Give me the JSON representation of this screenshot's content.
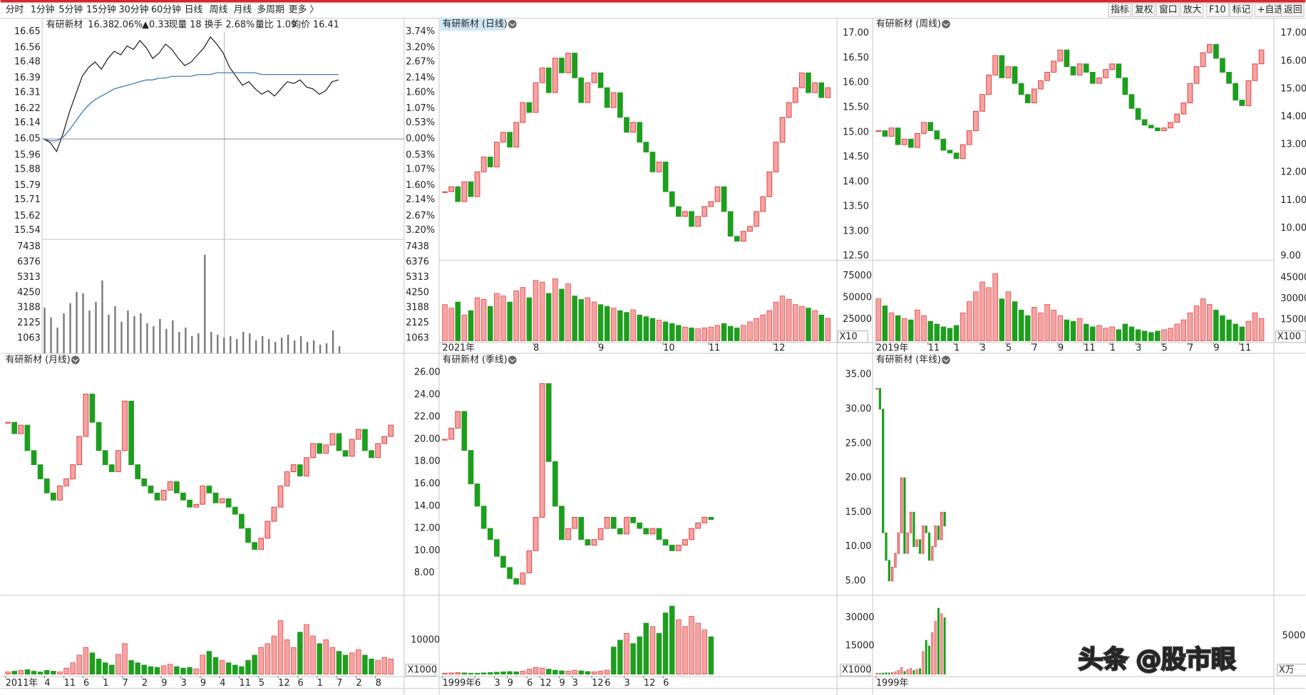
{
  "toolbar": {
    "left": [
      "分时",
      "1分钟",
      "5分钟",
      "15分钟",
      "30分钟",
      "60分钟",
      "日线",
      "周线",
      "月线",
      "多周期",
      "更多 〉"
    ],
    "active_index": 6,
    "right": [
      "指标",
      "复权",
      "窗口",
      "放大",
      "F10",
      "标记",
      "+自选",
      "返回"
    ]
  },
  "up_color": "#e23c3c",
  "down_color": "#1e9e1e",
  "intraday": {
    "type": "intraday",
    "header": {
      "name": "有研新材",
      "price": "16.38",
      "pct": "2.06%",
      "change": "▲0.33",
      "volume": "现量 18",
      "turnover": "换手 2.68%",
      "ratio": "量比 1.09",
      "avg": "均价 16.41"
    },
    "ylim": [
      15.54,
      16.65
    ],
    "yticks": [
      16.65,
      16.56,
      16.48,
      16.39,
      16.31,
      16.22,
      16.14,
      16.05,
      15.96,
      15.88,
      15.79,
      15.71,
      15.62,
      15.54
    ],
    "pct_labels": [
      "3.74%",
      "3.20%",
      "2.67%",
      "2.14%",
      "1.60%",
      "1.07%",
      "0.53%",
      "0.00%",
      "0.53%",
      "1.07%",
      "1.60%",
      "2.14%",
      "2.67%",
      "3.20%"
    ],
    "vol_ylim": [
      0,
      7438
    ],
    "vol_ticks": [
      7438,
      6376,
      5313,
      4250,
      3188,
      2125,
      1063
    ],
    "price": [
      16.05,
      16.03,
      15.98,
      16.08,
      16.2,
      16.3,
      16.4,
      16.45,
      16.48,
      16.44,
      16.5,
      16.54,
      16.52,
      16.57,
      16.55,
      16.6,
      16.56,
      16.5,
      16.53,
      16.58,
      16.55,
      16.5,
      16.46,
      16.48,
      16.52,
      16.56,
      16.62,
      16.58,
      16.53,
      16.45,
      16.4,
      16.35,
      16.37,
      16.33,
      16.3,
      16.32,
      16.29,
      16.33,
      16.37,
      16.36,
      16.38,
      16.34,
      16.33,
      16.3,
      16.32,
      16.37,
      16.38
    ],
    "avg_price": [
      16.05,
      16.04,
      16.04,
      16.06,
      16.1,
      16.15,
      16.2,
      16.24,
      16.27,
      16.29,
      16.31,
      16.33,
      16.34,
      16.35,
      16.36,
      16.37,
      16.38,
      16.38,
      16.39,
      16.39,
      16.4,
      16.4,
      16.4,
      16.4,
      16.41,
      16.41,
      16.41,
      16.42,
      16.42,
      16.42,
      16.42,
      16.42,
      16.42,
      16.42,
      16.41,
      16.41,
      16.41,
      16.41,
      16.41,
      16.41,
      16.41,
      16.41,
      16.41,
      16.41,
      16.41,
      16.41,
      16.41
    ],
    "volume": [
      3200,
      2500,
      1800,
      2800,
      3500,
      4300,
      4200,
      3000,
      3600,
      5100,
      2700,
      3300,
      2200,
      3000,
      2600,
      2800,
      2100,
      1900,
      2400,
      1700,
      2300,
      1500,
      1800,
      1200,
      1400,
      6900,
      1500,
      1300,
      1100,
      1200,
      1000,
      1500,
      1400,
      900,
      1200,
      1000,
      800,
      1100,
      1300,
      900,
      1200,
      800,
      900,
      600,
      700,
      1600,
      500
    ]
  },
  "panels": [
    {
      "type": "kline",
      "title": "有研新材 (日线)",
      "ylim": [
        12.5,
        17
      ],
      "yticks": [
        {
          "value": 17,
          "label": "17.00"
        },
        {
          "value": 16.5,
          "label": "16.50"
        },
        {
          "value": 16,
          "label": "16.00"
        },
        {
          "value": 15.5,
          "label": "15.50"
        },
        {
          "value": 15,
          "label": "15.00"
        },
        {
          "value": 14.5,
          "label": "14.50"
        },
        {
          "value": 14,
          "label": "14.00"
        },
        {
          "value": 13.5,
          "label": "13.50"
        },
        {
          "value": 13,
          "label": "13.00"
        },
        {
          "value": 12.5,
          "label": "12.50"
        }
      ],
      "vol_ylim": [
        0,
        88600
      ],
      "vol_ticks": [
        75000,
        50000,
        25000
      ],
      "vol_unit": "X10",
      "categories": [
        "2021年",
        null,
        null,
        null,
        null,
        null,
        null,
        null,
        null,
        null,
        null,
        null,
        null,
        null,
        "8",
        null,
        null,
        null,
        null,
        null,
        null,
        null,
        null,
        null,
        "9",
        null,
        null,
        null,
        null,
        null,
        null,
        null,
        null,
        null,
        "10",
        null,
        null,
        null,
        null,
        null,
        null,
        "11",
        null,
        null,
        null,
        null,
        null,
        null,
        null,
        null,
        null,
        "12",
        null,
        null,
        null,
        null,
        null,
        null,
        null,
        null
      ],
      "values": [
        13.8,
        13.9,
        13.6,
        14.0,
        13.7,
        14.2,
        14.5,
        14.3,
        14.8,
        15.0,
        14.7,
        15.2,
        15.6,
        15.4,
        16.0,
        16.3,
        15.8,
        16.5,
        16.2,
        16.6,
        16.1,
        15.6,
        16.0,
        16.2,
        15.9,
        15.5,
        15.8,
        15.3,
        15.0,
        15.2,
        14.8,
        14.6,
        14.2,
        14.4,
        13.8,
        13.5,
        13.3,
        13.4,
        13.1,
        13.3,
        13.5,
        13.6,
        13.9,
        13.4,
        12.9,
        12.8,
        13.0,
        13.1,
        13.4,
        13.7,
        14.2,
        14.8,
        15.3,
        15.6,
        15.9,
        16.2,
        15.8,
        16.0,
        15.7,
        15.9
      ],
      "volume": [
        42000,
        38000,
        45000,
        30000,
        35000,
        50000,
        48000,
        40000,
        55000,
        52000,
        45000,
        58000,
        62000,
        50000,
        70000,
        68000,
        55000,
        72000,
        60000,
        66000,
        52000,
        48000,
        50000,
        45000,
        42000,
        40000,
        38000,
        35000,
        33000,
        36000,
        30000,
        28000,
        26000,
        24000,
        22000,
        20000,
        18000,
        16000,
        15000,
        14000,
        15000,
        16000,
        18000,
        20000,
        17000,
        15000,
        18000,
        22000,
        26000,
        30000,
        35000,
        45000,
        52000,
        48000,
        42000,
        40000,
        38000,
        35000,
        30000,
        26000
      ]
    },
    {
      "type": "kline",
      "title": "有研新材 (周线)",
      "ylim": [
        9,
        17
      ],
      "yticks": [
        {
          "value": 17,
          "label": "17.00"
        },
        {
          "value": 16,
          "label": "16.00"
        },
        {
          "value": 15,
          "label": "15.00"
        },
        {
          "value": 14,
          "label": "14.00"
        },
        {
          "value": 13,
          "label": "13.00"
        },
        {
          "value": 12,
          "label": "12.00"
        },
        {
          "value": 11,
          "label": "11.00"
        },
        {
          "value": 10,
          "label": "10.00"
        },
        {
          "value": 9,
          "label": "9.00"
        }
      ],
      "vol_ylim": [
        0,
        54600
      ],
      "vol_ticks": [
        45000,
        30000,
        15000
      ],
      "vol_unit": "X100",
      "categories": [
        "2019年",
        null,
        null,
        null,
        null,
        null,
        null,
        null,
        "11",
        null,
        null,
        null,
        "1",
        null,
        null,
        null,
        "3",
        null,
        null,
        null,
        "5",
        null,
        null,
        null,
        "7",
        null,
        null,
        null,
        "9",
        null,
        null,
        null,
        "11",
        null,
        null,
        null,
        "1",
        null,
        null,
        null,
        "3",
        null,
        null,
        null,
        "5",
        null,
        null,
        null,
        "7",
        null,
        null,
        null,
        "9",
        null,
        null,
        null,
        "11",
        null,
        null,
        null
      ],
      "values": [
        13.5,
        13.3,
        13.6,
        13.0,
        13.2,
        12.9,
        13.4,
        13.8,
        13.5,
        13.2,
        12.8,
        12.7,
        12.5,
        13.0,
        13.5,
        14.2,
        14.8,
        15.5,
        16.2,
        15.4,
        15.8,
        15.2,
        14.8,
        14.5,
        15.0,
        15.3,
        15.6,
        16.0,
        16.4,
        15.8,
        15.5,
        15.9,
        15.6,
        15.2,
        15.4,
        15.7,
        15.9,
        15.4,
        14.8,
        14.3,
        13.9,
        13.7,
        13.6,
        13.5,
        13.6,
        13.8,
        14.1,
        14.5,
        15.2,
        15.8,
        16.3,
        16.6,
        16.1,
        15.6,
        15.2,
        14.6,
        14.4,
        15.3,
        15.9,
        16.4
      ],
      "volume": [
        30000,
        25000,
        20000,
        18000,
        16000,
        15000,
        22000,
        18000,
        14000,
        12000,
        10000,
        9000,
        11000,
        20000,
        28000,
        35000,
        42000,
        38000,
        48000,
        30000,
        35000,
        28000,
        22000,
        18000,
        24000,
        20000,
        26000,
        22000,
        18000,
        15000,
        14000,
        16000,
        12000,
        10000,
        11000,
        9000,
        10000,
        8000,
        12000,
        10000,
        8000,
        7000,
        6000,
        7000,
        8000,
        9000,
        12000,
        15000,
        20000,
        25000,
        30000,
        26000,
        22000,
        18000,
        15000,
        12000,
        10000,
        14000,
        20000,
        16000
      ]
    },
    {
      "type": "kline",
      "title": "有研新材 (月线)",
      "ylim": [
        3,
        19
      ],
      "yticks": [],
      "vol_ylim": [
        0,
        9890
      ],
      "vol_ticks": [
        5000
      ],
      "vol_unit": "X万",
      "categories": [
        "2011年",
        null,
        null,
        null,
        null,
        null,
        "4",
        null,
        null,
        "11",
        null,
        null,
        "6",
        null,
        null,
        "1",
        null,
        null,
        "7",
        null,
        null,
        "2",
        null,
        null,
        "9",
        null,
        null,
        "3",
        null,
        null,
        "9",
        null,
        null,
        "4",
        null,
        null,
        "11",
        null,
        null,
        "5",
        null,
        null,
        "12",
        null,
        null,
        "6",
        null,
        null,
        "1",
        null,
        null,
        "7",
        null,
        null,
        "2",
        null,
        null,
        "8",
        null,
        null
      ],
      "values": [
        15,
        14.2,
        14.8,
        13,
        12,
        11,
        10,
        9.5,
        10.5,
        11,
        12,
        14,
        17,
        15,
        13,
        12,
        11.5,
        13,
        16.5,
        12,
        11,
        10.5,
        10,
        9.5,
        10.2,
        10.8,
        10,
        9.5,
        9,
        9.2,
        10.5,
        10,
        9.3,
        9.6,
        9,
        8.5,
        7.5,
        6.5,
        6,
        6.8,
        8,
        9,
        10.5,
        11.5,
        12,
        11.2,
        12.5,
        13.5,
        12.8,
        13.4,
        14.2,
        13,
        12.6,
        13.8,
        14.5,
        13,
        12.5,
        13.5,
        14,
        14.8
      ],
      "volume": [
        300,
        400,
        500,
        600,
        400,
        300,
        500,
        400,
        300,
        800,
        1500,
        2500,
        3500,
        2800,
        2000,
        1500,
        1200,
        2600,
        4000,
        1800,
        1500,
        1200,
        1000,
        900,
        1100,
        1300,
        1000,
        800,
        900,
        700,
        2500,
        3000,
        2200,
        1800,
        1500,
        1200,
        1000,
        1800,
        2500,
        3500,
        4000,
        5000,
        7000,
        4500,
        3500,
        5500,
        6500,
        5000,
        4000,
        4500,
        3500,
        3000,
        2500,
        2800,
        3200,
        2500,
        2000,
        1800,
        2200,
        2000
      ]
    },
    {
      "type": "kline",
      "title": "有研新材 (季线)",
      "ylim": [
        6.3,
        26.6
      ],
      "yticks": [
        {
          "value": 26,
          "label": "26.00"
        },
        {
          "value": 24,
          "label": "24.00"
        },
        {
          "value": 22,
          "label": "22.00"
        },
        {
          "value": 20,
          "label": "20.00"
        },
        {
          "value": 18,
          "label": "18.00"
        },
        {
          "value": 16,
          "label": "16.00"
        },
        {
          "value": 14,
          "label": "14.00"
        },
        {
          "value": 12,
          "label": "12.00"
        },
        {
          "value": 10,
          "label": "10.00"
        },
        {
          "value": 8,
          "label": "8.00"
        }
      ],
      "vol_ylim": [
        0,
        22200
      ],
      "vol_ticks": [
        10000
      ],
      "vol_unit": "X1000",
      "categories": [
        "1999年",
        null,
        null,
        null,
        null,
        "6",
        null,
        null,
        "3",
        null,
        "9",
        null,
        null,
        "6",
        null,
        "12",
        null,
        null,
        "9",
        null,
        "3",
        null,
        null,
        "12",
        null,
        "6",
        null,
        null,
        "3",
        null,
        null,
        "12",
        null,
        null,
        "6",
        null,
        null,
        null,
        null,
        null,
        null,
        null
      ],
      "values": [
        20,
        21,
        22.5,
        19,
        16,
        14,
        12,
        11,
        9.5,
        8.5,
        7.5,
        7,
        8,
        10,
        13,
        25,
        18,
        14,
        11,
        12,
        13,
        11,
        10.5,
        11,
        12,
        13,
        12,
        11.5,
        13,
        12.5,
        12,
        11.5,
        12,
        11,
        10.5,
        10,
        10.5,
        11,
        12,
        12.5,
        13,
        12.8
      ],
      "volume": [
        300,
        400,
        500,
        400,
        300,
        300,
        400,
        500,
        600,
        700,
        800,
        700,
        900,
        1500,
        2000,
        1800,
        1500,
        1200,
        1000,
        900,
        1100,
        1000,
        800,
        700,
        900,
        1200,
        8000,
        10000,
        12000,
        9000,
        11000,
        15000,
        14000,
        12000,
        18000,
        20000,
        16000,
        14000,
        17000,
        15000,
        13000,
        11000
      ]
    },
    {
      "type": "kline",
      "title": "有研新材 (年线)",
      "ylim": [
        3.4,
        36.3
      ],
      "yticks": [
        {
          "value": 35,
          "label": "35.00"
        },
        {
          "value": 30,
          "label": "30.00"
        },
        {
          "value": 25,
          "label": "25.00"
        },
        {
          "value": 20,
          "label": "20.00"
        },
        {
          "value": 15,
          "label": "15.00"
        },
        {
          "value": 10,
          "label": "10.00"
        },
        {
          "value": 5,
          "label": "5.00"
        }
      ],
      "vol_ylim": [
        0,
        40100
      ],
      "vol_ticks": [
        30000,
        15000
      ],
      "vol_unit": "X1000",
      "categories": [
        "1999年",
        null,
        null,
        null,
        null,
        null,
        null,
        null,
        null,
        null,
        null,
        null,
        null,
        null,
        null,
        null,
        null,
        null,
        null,
        null,
        null,
        null,
        null
      ],
      "values": [
        33,
        30,
        12,
        8,
        5,
        7,
        9,
        12,
        20,
        9,
        12,
        15,
        10,
        11,
        9,
        13,
        12,
        8,
        10,
        13,
        11,
        15,
        13
      ],
      "volume": [
        500,
        400,
        600,
        800,
        700,
        900,
        1200,
        2000,
        3500,
        1500,
        2500,
        3000,
        2000,
        2500,
        3000,
        12000,
        18000,
        15000,
        22000,
        28000,
        35000,
        32000,
        30000
      ]
    }
  ],
  "watermark": "头条 @股市眼"
}
